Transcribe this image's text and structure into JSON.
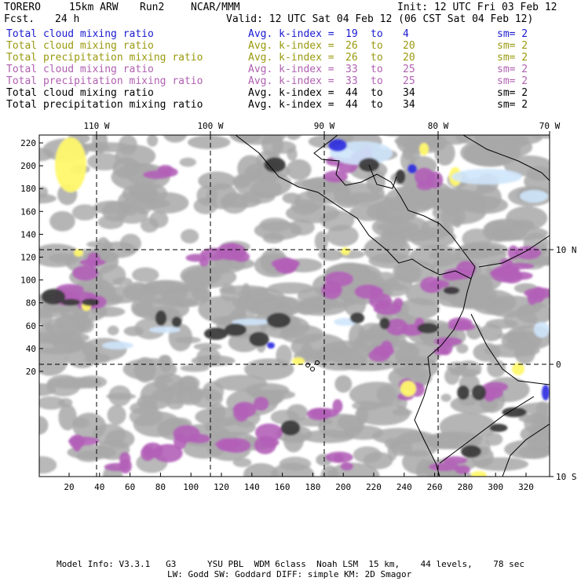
{
  "header": {
    "model": "TORERO",
    "resolution": "15km ARW",
    "run": "Run2",
    "center": "NCAR/MMM",
    "init": "Init: 12 UTC Fri 03 Feb 12",
    "fcst_label": "Fcst.",
    "fcst_value": "24 h",
    "valid": "Valid: 12 UTC Sat 04 Feb 12 (06 CST Sat 04 Feb 12)"
  },
  "legend_rows": [
    {
      "label": "Total cloud mixing ratio",
      "kindex": "Avg. k-index =",
      "from": "19",
      "to_word": "to",
      "to": "4",
      "sm": "sm= 2",
      "color": "#1a1ad0"
    },
    {
      "label": "Total cloud mixing ratio",
      "kindex": "Avg. k-index =",
      "from": "26",
      "to_word": "to",
      "to": "20",
      "sm": "sm= 2",
      "color": "#9a9a10"
    },
    {
      "label": "Total precipitation mixing ratio",
      "kindex": "Avg. k-index =",
      "from": "26",
      "to_word": "to",
      "to": "20",
      "sm": "sm= 2",
      "color": "#9a9a10"
    },
    {
      "label": "Total cloud mixing ratio",
      "kindex": "Avg. k-index =",
      "from": "33",
      "to_word": "to",
      "to": "25",
      "sm": "sm= 2",
      "color": "#b060b0"
    },
    {
      "label": "Total precipitation mixing ratio",
      "kindex": "Avg. k-index =",
      "from": "33",
      "to_word": "to",
      "to": "25",
      "sm": "sm= 2",
      "color": "#b060b0"
    },
    {
      "label": "Total cloud mixing ratio",
      "kindex": "Avg. k-index =",
      "from": "44",
      "to_word": "to",
      "to": "34",
      "sm": "sm= 2",
      "color": "#000000"
    },
    {
      "label": "Total precipitation mixing ratio",
      "kindex": "Avg. k-index =",
      "from": "44",
      "to_word": "to",
      "to": "34",
      "sm": "sm= 2",
      "color": "#000000"
    }
  ],
  "map": {
    "lon_labels": [
      "110 W",
      "100 W",
      "90 W",
      "80 W",
      "70 W"
    ],
    "lat_labels": [
      "10 N",
      "0",
      "10 S"
    ],
    "y_ticks": [
      "220",
      "200",
      "180",
      "160",
      "140",
      "120",
      "100",
      "80",
      "60",
      "40",
      "20"
    ],
    "x_ticks": [
      "20",
      "40",
      "60",
      "80",
      "100",
      "120",
      "140",
      "160",
      "180",
      "200",
      "220",
      "240",
      "260",
      "280",
      "300",
      "320"
    ],
    "colors": {
      "gray": "#a8a8a8",
      "dark": "#3c3c3c",
      "purple": "#b25fb8",
      "yellow": "#fff86a",
      "lightblue": "#cfe6fb",
      "blue": "#2a2ae0",
      "border": "#000000"
    }
  },
  "footer": {
    "line1": "Model Info: V3.3.1   G3      YSU PBL  WDM 6class  Noah LSM  15 km,    44 levels,    78 sec",
    "line2": "LW: Godd SW: Goddard DIFF: simple KM: 2D Smagor"
  }
}
